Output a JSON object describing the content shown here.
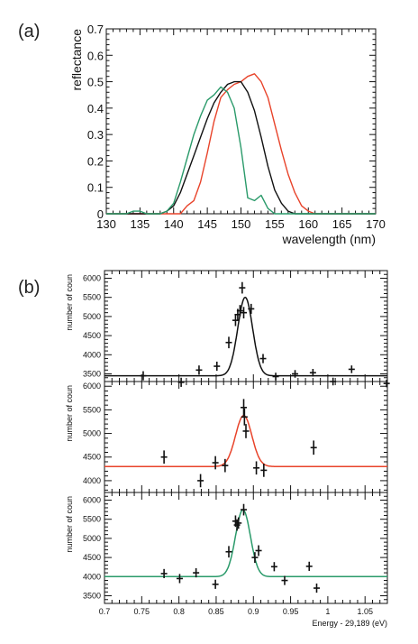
{
  "panel_a_label": "(a)",
  "panel_b_label": "(b)",
  "chart_data": [
    {
      "type": "line",
      "xlabel": "wavelength (nm)",
      "ylabel": "reflectance",
      "xlim": [
        130,
        170
      ],
      "ylim": [
        0,
        0.7
      ],
      "xticks": [
        "130",
        "135",
        "140",
        "145",
        "150",
        "155",
        "160",
        "165",
        "170"
      ],
      "yticks": [
        "0",
        "0.1",
        "0.2",
        "0.3",
        "0.4",
        "0.5",
        "0.6",
        "0.7"
      ],
      "series": [
        {
          "color": "#e8432a",
          "x": [
            130,
            141,
            142,
            143,
            144,
            145,
            146,
            147,
            148,
            149,
            150,
            151,
            152,
            153,
            154,
            155,
            156,
            157,
            158,
            159,
            160,
            161,
            170
          ],
          "y": [
            0,
            0,
            0.03,
            0.05,
            0.12,
            0.23,
            0.35,
            0.44,
            0.47,
            0.49,
            0.5,
            0.52,
            0.53,
            0.5,
            0.44,
            0.34,
            0.24,
            0.15,
            0.08,
            0.03,
            0.01,
            0,
            0
          ]
        },
        {
          "color": "#111111",
          "x": [
            130,
            138,
            139,
            140,
            141,
            142,
            143,
            144,
            145,
            146,
            147,
            148,
            149,
            150,
            151,
            152,
            153,
            154,
            155,
            156,
            157,
            158,
            170
          ],
          "y": [
            0,
            0,
            0.01,
            0.03,
            0.08,
            0.15,
            0.22,
            0.29,
            0.36,
            0.42,
            0.46,
            0.49,
            0.5,
            0.5,
            0.46,
            0.39,
            0.29,
            0.18,
            0.09,
            0.04,
            0.01,
            0,
            0
          ]
        },
        {
          "color": "#2a9a6a",
          "x": [
            130,
            133,
            134,
            135,
            136,
            137,
            138,
            139,
            140,
            141,
            142,
            143,
            144,
            145,
            146,
            147,
            148,
            149,
            150,
            151,
            152,
            153,
            154,
            155,
            170
          ],
          "y": [
            0,
            0,
            0.01,
            0.01,
            0,
            0,
            0,
            0.01,
            0.04,
            0.12,
            0.21,
            0.3,
            0.37,
            0.43,
            0.45,
            0.48,
            0.46,
            0.4,
            0.25,
            0.06,
            0.05,
            0.07,
            0.02,
            0,
            0
          ]
        }
      ]
    },
    {
      "type": "scatter",
      "ylabel": "number of coun",
      "xlim": [
        0.7,
        1.08
      ],
      "ylim": [
        3300,
        6200
      ],
      "yticks": [
        "3500",
        "4000",
        "4500",
        "5000",
        "5500",
        "6000"
      ],
      "fit_color": "#111111",
      "fit": {
        "baseline": 3450,
        "amplitude": 2050,
        "center": 0.889,
        "sigma": 0.01
      },
      "x": [
        0.752,
        0.803,
        0.827,
        0.851,
        0.867,
        0.876,
        0.879,
        0.882,
        0.885,
        0.887,
        0.897,
        0.913,
        0.93,
        0.956,
        0.98,
        1.007,
        1.032,
        1.079
      ],
      "y": [
        3450,
        3280,
        3600,
        3700,
        4320,
        4900,
        5050,
        5150,
        5750,
        5100,
        5200,
        3900,
        3430,
        3500,
        3530,
        3300,
        3620,
        3250
      ],
      "yerr": [
        120,
        120,
        120,
        120,
        150,
        150,
        150,
        150,
        150,
        150,
        130,
        120,
        100,
        100,
        100,
        100,
        100,
        100
      ]
    },
    {
      "type": "scatter",
      "ylabel": "number of coun",
      "xlim": [
        0.7,
        1.08
      ],
      "ylim": [
        3750,
        6100
      ],
      "yticks": [
        "4000",
        "4500",
        "5000",
        "5500",
        "6000"
      ],
      "fit_color": "#e8432a",
      "fit": {
        "baseline": 4300,
        "amplitude": 1080,
        "center": 0.887,
        "sigma": 0.011
      },
      "x": [
        0.78,
        0.829,
        0.849,
        0.862,
        0.887,
        0.888,
        0.89,
        0.904,
        0.914,
        0.981
      ],
      "y": [
        4500,
        4000,
        4380,
        4320,
        5550,
        5350,
        5050,
        4270,
        4220,
        4700
      ],
      "yerr": [
        140,
        140,
        140,
        140,
        180,
        180,
        150,
        140,
        140,
        150
      ]
    },
    {
      "type": "scatter",
      "ylabel": "number of coun",
      "xlim": [
        0.7,
        1.08
      ],
      "ylim": [
        3300,
        6200
      ],
      "yticks": [
        "3500",
        "4000",
        "4500",
        "5000",
        "5500",
        "6000"
      ],
      "xlabel": "Energy - 29,189 (eV)",
      "xticks": [
        "0.7",
        "0.75",
        "0.8",
        "0.85",
        "0.9",
        "0.95",
        "1",
        "1.05"
      ],
      "fit_color": "#2a9a6a",
      "fit": {
        "baseline": 4000,
        "amplitude": 1750,
        "center": 0.886,
        "sigma": 0.01
      },
      "x": [
        0.78,
        0.801,
        0.823,
        0.849,
        0.867,
        0.876,
        0.878,
        0.88,
        0.887,
        0.902,
        0.907,
        0.928,
        0.942,
        0.975,
        0.985
      ],
      "y": [
        4080,
        3950,
        4100,
        3800,
        4650,
        5450,
        5350,
        5400,
        5750,
        4500,
        4680,
        4260,
        3900,
        4270,
        3700
      ],
      "yerr": [
        120,
        120,
        120,
        120,
        150,
        150,
        150,
        150,
        150,
        140,
        140,
        120,
        120,
        120,
        120
      ]
    }
  ]
}
